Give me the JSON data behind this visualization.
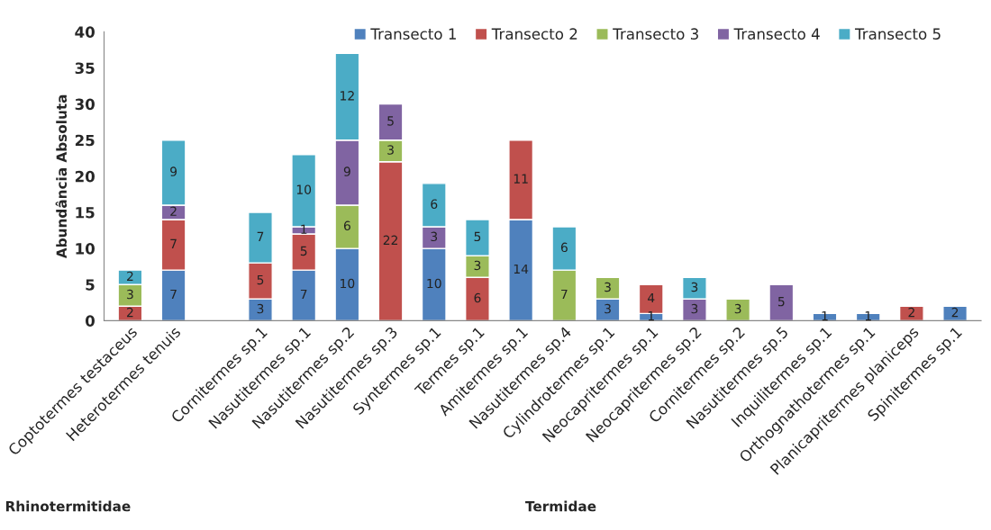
{
  "chart_data": {
    "type": "bar",
    "stacked": true,
    "ylabel": "Abundância Absoluta",
    "categories": [
      "Coptotermes testaceus",
      "Heterotermes tenuis",
      null,
      "Cornitermes sp.1",
      "Nasutitermes sp.1",
      "Nasutitermes sp.2",
      "Nasutitermes sp.3",
      "Syntermes sp.1",
      "Termes sp.1",
      "Amitermes sp.1",
      "Nasutitermes sp.4",
      "Cylindrotermes sp.1",
      "Neocapritermes sp.1",
      "Neocapritermes sp.2",
      "Cornitermes sp.2",
      "Nasutitermes sp.5",
      "Inquilitermes sp.1",
      "Orthognathotermes sp.1",
      "Planicapritermes planiceps",
      "Spinitermes sp.1"
    ],
    "series": [
      {
        "name": "Transecto 1",
        "color": "#4f81bd",
        "values": [
          null,
          7,
          null,
          3,
          7,
          10,
          null,
          10,
          null,
          14,
          null,
          3,
          1,
          null,
          null,
          null,
          1,
          1,
          null,
          2
        ]
      },
      {
        "name": "Transecto 2",
        "color": "#c0504d",
        "values": [
          2,
          7,
          null,
          5,
          5,
          null,
          22,
          null,
          6,
          11,
          null,
          null,
          4,
          null,
          null,
          null,
          null,
          null,
          2,
          null
        ]
      },
      {
        "name": "Transecto 3",
        "color": "#9bbb59",
        "values": [
          3,
          null,
          null,
          null,
          null,
          6,
          3,
          null,
          3,
          null,
          7,
          3,
          null,
          null,
          3,
          null,
          null,
          null,
          null,
          null
        ]
      },
      {
        "name": "Transecto 4",
        "color": "#8064a2",
        "values": [
          null,
          2,
          null,
          null,
          1,
          9,
          5,
          3,
          null,
          null,
          null,
          null,
          null,
          3,
          null,
          5,
          null,
          null,
          null,
          null
        ]
      },
      {
        "name": "Transecto 5",
        "color": "#4bacc6",
        "values": [
          2,
          9,
          null,
          7,
          10,
          12,
          null,
          6,
          5,
          null,
          6,
          null,
          null,
          3,
          null,
          null,
          null,
          null,
          null,
          null
        ]
      }
    ],
    "ylim": [
      0,
      40
    ],
    "yticks": [
      0,
      5,
      10,
      15,
      20,
      25,
      30,
      35,
      40
    ],
    "data_labels": true,
    "legend": "top",
    "grid": false,
    "annotations": [
      "Rhinotermitidae",
      "Termidae"
    ]
  }
}
